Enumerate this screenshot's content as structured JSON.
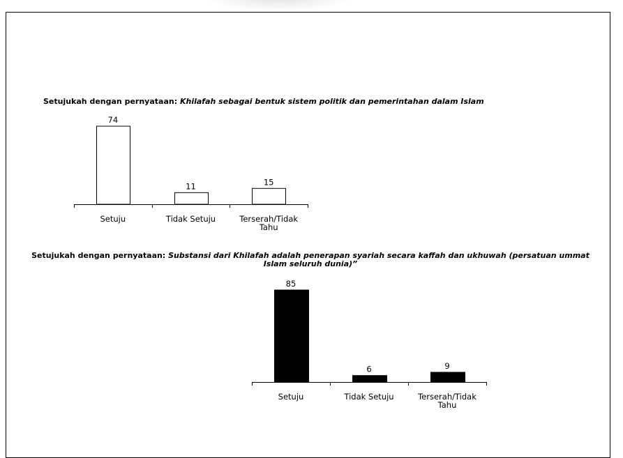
{
  "chart_data": [
    {
      "type": "bar",
      "title_prefix": "Setujukah dengan pernyataan:",
      "title_italic": "Khilafah sebagai bentuk sistem politik dan pemerintahan dalam Islam",
      "categories": [
        "Setuju",
        "Tidak Setuju",
        "Terserah/Tidak Tahu"
      ],
      "category_lines": [
        [
          "Setuju"
        ],
        [
          "Tidak Setuju"
        ],
        [
          "Terserah/Tidak",
          "Tahu"
        ]
      ],
      "values": [
        74,
        11,
        15
      ],
      "bar_fill": "#ffffff",
      "bar_stroke": "#000000",
      "ylim": [
        0,
        74
      ],
      "grid": false
    },
    {
      "type": "bar",
      "title_prefix": "Setujukah dengan pernyataan:",
      "title_italic": "Substansi dari Khilafah adalah penerapan syariah secara kaffah dan ukhuwah (persatuan ummat Islam seluruh dunia)”",
      "categories": [
        "Setuju",
        "Tidak Setuju",
        "Terserah/Tidak Tahu"
      ],
      "category_lines": [
        [
          "Setuju"
        ],
        [
          "Tidak Setuju"
        ],
        [
          "Terserah/Tidak",
          "Tahu"
        ]
      ],
      "values": [
        85,
        6,
        9
      ],
      "bar_fill": "#000000",
      "bar_stroke": "#000000",
      "ylim": [
        0,
        85
      ],
      "grid": false
    }
  ]
}
